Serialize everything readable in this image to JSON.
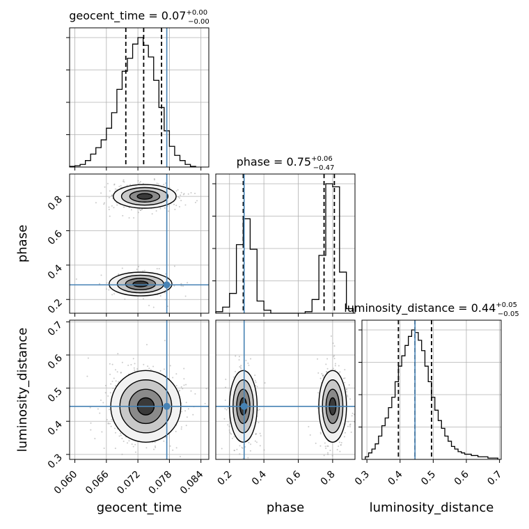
{
  "chart_data": [
    {
      "type": "histogram",
      "panel": "geocent_time marginal",
      "title": {
        "prefix": "geocent_time = ",
        "value": "0.07",
        "plus": "+0.00",
        "minus": "−0.00"
      },
      "xlim": [
        0.059,
        0.0855
      ],
      "bins": [
        0.0595,
        0.0605,
        0.0615,
        0.0625,
        0.0635,
        0.0645,
        0.0655,
        0.0665,
        0.0675,
        0.0685,
        0.0695,
        0.0705,
        0.0715,
        0.0725,
        0.0735,
        0.0745,
        0.0755,
        0.0765,
        0.0775,
        0.0785,
        0.0795,
        0.0805,
        0.0815,
        0.0825
      ],
      "counts": [
        0.005,
        0.01,
        0.02,
        0.05,
        0.1,
        0.15,
        0.21,
        0.3,
        0.42,
        0.6,
        0.74,
        0.84,
        0.95,
        1.0,
        0.94,
        0.85,
        0.67,
        0.46,
        0.28,
        0.16,
        0.09,
        0.05,
        0.02,
        0.005
      ],
      "quantiles": [
        0.0697,
        0.0731,
        0.0765
      ],
      "truth": 0.0775
    },
    {
      "type": "scatter-contour",
      "panel": "phase vs geocent_time",
      "xlim": [
        0.059,
        0.0855
      ],
      "ylim": [
        0.12,
        0.93
      ],
      "modes": [
        {
          "cx": 0.0733,
          "cy": 0.8,
          "sx": 0.0026,
          "sy": 0.03,
          "n": 380
        },
        {
          "cx": 0.0725,
          "cy": 0.29,
          "sx": 0.0026,
          "sy": 0.03,
          "n": 180
        }
      ],
      "truth": {
        "x": 0.0775,
        "y": 0.285
      }
    },
    {
      "type": "histogram",
      "panel": "phase marginal",
      "title": {
        "prefix": "phase = ",
        "value": "0.75",
        "plus": "+0.06",
        "minus": "−0.47"
      },
      "xlim": [
        0.12,
        0.93
      ],
      "bins": [
        0.14,
        0.18,
        0.22,
        0.26,
        0.3,
        0.34,
        0.38,
        0.42,
        0.46,
        0.5,
        0.54,
        0.58,
        0.62,
        0.66,
        0.7,
        0.74,
        0.78,
        0.82,
        0.86,
        0.9
      ],
      "counts": [
        0.01,
        0.04,
        0.13,
        0.45,
        0.62,
        0.42,
        0.08,
        0.02,
        0.0,
        0.0,
        0.0,
        0.0,
        0.0,
        0.01,
        0.09,
        0.38,
        0.85,
        0.83,
        0.27,
        0.03
      ],
      "quantiles": [
        0.28,
        0.75,
        0.81
      ],
      "truth": 0.285
    },
    {
      "type": "scatter-contour",
      "panel": "luminosity_distance vs geocent_time",
      "xlim": [
        0.059,
        0.0855
      ],
      "ylim": [
        0.285,
        0.705
      ],
      "modes": [
        {
          "cx": 0.0735,
          "cy": 0.445,
          "sx": 0.0029,
          "sy": 0.047,
          "n": 520
        }
      ],
      "truth": {
        "x": 0.0775,
        "y": 0.445
      }
    },
    {
      "type": "scatter-contour",
      "panel": "luminosity_distance vs phase",
      "xlim": [
        0.12,
        0.93
      ],
      "ylim": [
        0.285,
        0.705
      ],
      "modes": [
        {
          "cx": 0.28,
          "cy": 0.445,
          "sx": 0.035,
          "sy": 0.047,
          "n": 260
        },
        {
          "cx": 0.8,
          "cy": 0.445,
          "sx": 0.035,
          "sy": 0.047,
          "n": 330
        }
      ],
      "truth": {
        "x": 0.285,
        "y": 0.445
      }
    },
    {
      "type": "histogram",
      "panel": "luminosity_distance marginal",
      "title": {
        "prefix": "luminosity_distance = ",
        "value": "0.44",
        "plus": "+0.05",
        "minus": "−0.05"
      },
      "xlim": [
        0.285,
        0.705
      ],
      "bins": [
        0.3,
        0.31,
        0.32,
        0.33,
        0.34,
        0.35,
        0.36,
        0.37,
        0.38,
        0.39,
        0.4,
        0.41,
        0.42,
        0.43,
        0.44,
        0.45,
        0.46,
        0.47,
        0.48,
        0.49,
        0.5,
        0.51,
        0.52,
        0.53,
        0.54,
        0.55,
        0.56,
        0.57,
        0.58,
        0.59,
        0.6,
        0.61,
        0.62,
        0.63,
        0.64,
        0.65,
        0.66,
        0.67,
        0.68,
        0.69
      ],
      "counts": [
        0.02,
        0.05,
        0.08,
        0.12,
        0.18,
        0.26,
        0.32,
        0.4,
        0.48,
        0.6,
        0.72,
        0.8,
        0.88,
        0.95,
        1.0,
        0.98,
        0.92,
        0.84,
        0.72,
        0.6,
        0.48,
        0.38,
        0.3,
        0.24,
        0.18,
        0.14,
        0.1,
        0.08,
        0.06,
        0.05,
        0.04,
        0.04,
        0.03,
        0.03,
        0.02,
        0.02,
        0.02,
        0.01,
        0.01,
        0.01
      ],
      "quantiles": [
        0.395,
        0.445,
        0.495
      ],
      "truth": 0.445
    }
  ],
  "axes": {
    "geocent_time": {
      "label": "geocent_time",
      "ticks": [
        "0.060",
        "0.066",
        "0.072",
        "0.078",
        "0.084"
      ],
      "tick_values": [
        0.06,
        0.066,
        0.072,
        0.078,
        0.084
      ]
    },
    "phase": {
      "label": "phase",
      "ticks": [
        "0.2",
        "0.4",
        "0.6",
        "0.8"
      ],
      "tick_values": [
        0.2,
        0.4,
        0.6,
        0.8
      ]
    },
    "luminosity_distance": {
      "label": "luminosity_distance",
      "ticks": [
        "0.3",
        "0.4",
        "0.5",
        "0.6",
        "0.7"
      ],
      "tick_values": [
        0.3,
        0.4,
        0.5,
        0.6,
        0.7
      ]
    }
  },
  "colors": {
    "truth": "#4682b4",
    "hist": "#000000",
    "grid": "#b0b0b0",
    "points": "#9e9e9e"
  }
}
